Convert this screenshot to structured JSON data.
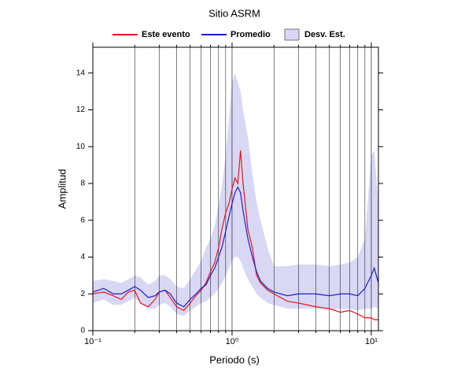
{
  "chart_data": {
    "type": "line",
    "title": "Sitio ASRM",
    "x_label": "Periodo (s)",
    "y_label": "Amplitud",
    "x_scale": "log",
    "xlim": [
      0.1,
      11.25
    ],
    "ylim": [
      0,
      15.4
    ],
    "xticks": [
      {
        "value": 0.1,
        "label": "10⁻¹"
      },
      {
        "value": 1,
        "label": "10⁰"
      },
      {
        "value": 10,
        "label": "10¹"
      }
    ],
    "xminorticks": [
      0.2,
      0.3,
      0.4,
      0.5,
      0.6,
      0.7,
      0.8,
      0.9,
      2,
      3,
      4,
      5,
      6,
      7,
      8,
      9
    ],
    "yticks": [
      0,
      2,
      4,
      6,
      8,
      10,
      12,
      14
    ],
    "grid": true,
    "x": [
      0.1,
      0.12,
      0.14,
      0.16,
      0.18,
      0.2,
      0.22,
      0.25,
      0.28,
      0.3,
      0.33,
      0.36,
      0.4,
      0.45,
      0.5,
      0.55,
      0.6,
      0.65,
      0.7,
      0.75,
      0.8,
      0.85,
      0.9,
      0.95,
      1.0,
      1.05,
      1.1,
      1.15,
      1.2,
      1.3,
      1.4,
      1.5,
      1.6,
      1.8,
      2.0,
      2.5,
      3,
      4,
      5,
      6,
      7,
      8,
      9,
      10,
      10.5,
      11.25
    ],
    "series": [
      {
        "name": "Este evento",
        "color": "#e8141c",
        "values": [
          2.0,
          2.1,
          1.9,
          1.7,
          2.1,
          2.2,
          1.5,
          1.3,
          1.7,
          2.1,
          2.2,
          1.8,
          1.3,
          1.1,
          1.5,
          1.9,
          2.2,
          2.6,
          3.2,
          3.7,
          4.5,
          5.6,
          6.4,
          6.9,
          7.7,
          8.3,
          8.0,
          9.8,
          8.0,
          5.5,
          4.5,
          3.0,
          2.6,
          2.2,
          2.0,
          1.6,
          1.5,
          1.3,
          1.2,
          1.0,
          1.1,
          0.9,
          0.7,
          0.7,
          0.6,
          0.6
        ]
      },
      {
        "name": "Promedio",
        "color": "#1c1ccc",
        "values": [
          2.1,
          2.3,
          2.0,
          2.0,
          2.2,
          2.4,
          2.2,
          1.8,
          1.9,
          2.1,
          2.2,
          2.0,
          1.5,
          1.3,
          1.7,
          2.0,
          2.3,
          2.5,
          3.0,
          3.4,
          4.0,
          4.6,
          5.4,
          6.2,
          6.9,
          7.5,
          7.8,
          7.5,
          6.5,
          5.0,
          4.0,
          3.2,
          2.7,
          2.3,
          2.1,
          1.9,
          2.0,
          2.0,
          1.9,
          2.0,
          2.0,
          1.9,
          2.3,
          3.0,
          3.4,
          2.6
        ]
      },
      {
        "name": "Desv. Est.",
        "color": "#d8d8f5",
        "type": "band",
        "upper": [
          2.7,
          2.8,
          2.7,
          2.6,
          2.8,
          3.0,
          2.9,
          2.5,
          2.7,
          3.0,
          3.0,
          2.8,
          2.4,
          2.3,
          2.8,
          3.3,
          3.8,
          4.5,
          5.0,
          5.7,
          6.8,
          8.0,
          9.5,
          11.5,
          13.5,
          14.0,
          13.5,
          13.0,
          12.0,
          10.5,
          8.5,
          7.0,
          6.0,
          4.5,
          3.5,
          3.5,
          3.6,
          3.6,
          3.5,
          3.6,
          3.7,
          4.0,
          5.0,
          9.5,
          9.8,
          7.0
        ],
        "lower": [
          1.5,
          1.7,
          1.4,
          1.4,
          1.6,
          1.8,
          1.5,
          1.2,
          1.2,
          1.4,
          1.5,
          1.3,
          0.9,
          0.8,
          1.1,
          1.3,
          1.5,
          1.6,
          1.8,
          2.0,
          2.3,
          2.6,
          3.0,
          3.4,
          3.8,
          4.0,
          4.0,
          3.8,
          3.4,
          2.8,
          2.4,
          2.0,
          1.8,
          1.5,
          1.4,
          1.2,
          1.2,
          1.2,
          1.1,
          1.2,
          1.2,
          1.1,
          1.2,
          1.2,
          1.3,
          1.2
        ]
      }
    ]
  }
}
